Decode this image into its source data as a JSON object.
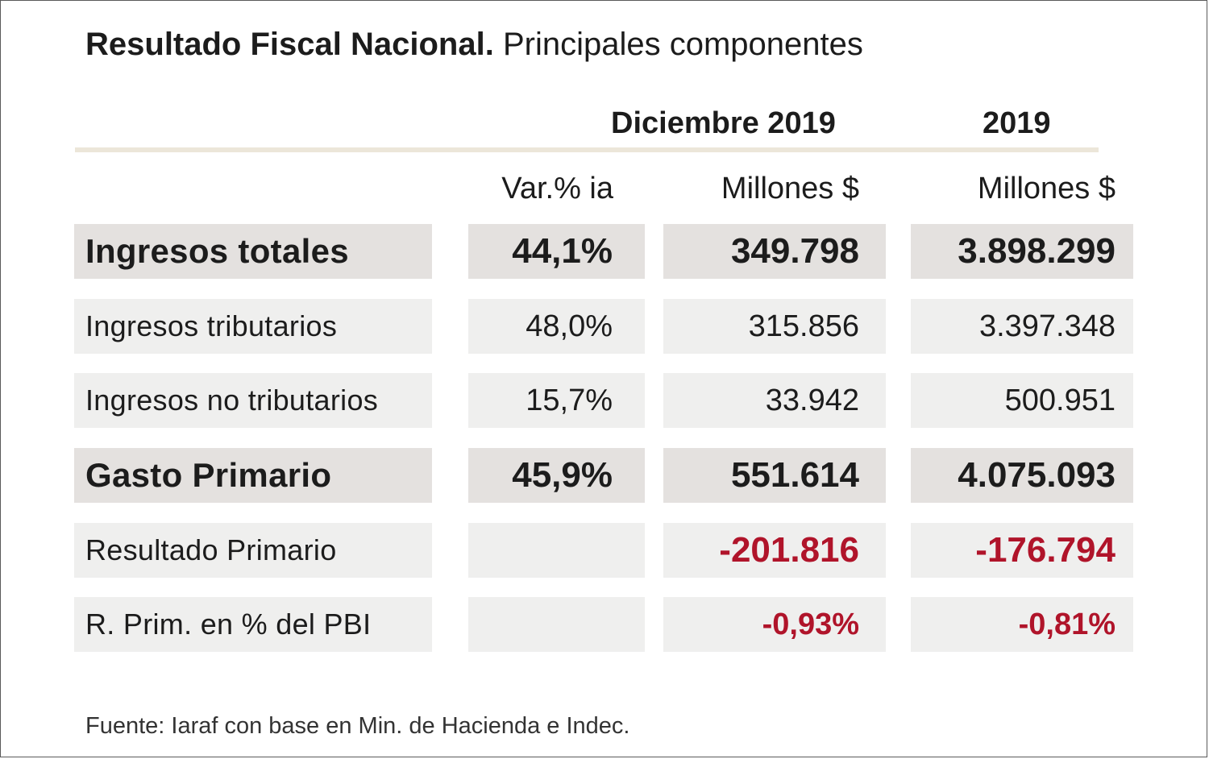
{
  "chart_data": {
    "type": "table",
    "title": "Resultado Fiscal Nacional.",
    "subtitle": "Principales componentes",
    "periods": [
      "Diciembre 2019",
      "2019"
    ],
    "columns": [
      "Var.% ia",
      "Millones $",
      "Millones $"
    ],
    "rows": [
      {
        "label": "Ingresos totales",
        "var": "44,1%",
        "dic": "349.798",
        "year": "3.898.299"
      },
      {
        "label": "Ingresos tributarios",
        "var": "48,0%",
        "dic": "315.856",
        "year": "3.397.348"
      },
      {
        "label": "Ingresos no tributarios",
        "var": "15,7%",
        "dic": "33.942",
        "year": "500.951"
      },
      {
        "label": "Gasto Primario",
        "var": "45,9%",
        "dic": "551.614",
        "year": "4.075.093"
      },
      {
        "label": "Resultado Primario",
        "var": "",
        "dic": "-201.816",
        "year": "-176.794"
      },
      {
        "label": "R. Prim. en % del PBI",
        "var": "",
        "dic": "-0,93%",
        "year": "-0,81%"
      }
    ],
    "source": "Fuente: Iaraf con base en Min. de Hacienda e Indec.",
    "colors": {
      "negative": "#b0142a",
      "row_highlight": "#e4e1df",
      "row_normal": "#efefee",
      "rule": "#ece6d9"
    }
  }
}
